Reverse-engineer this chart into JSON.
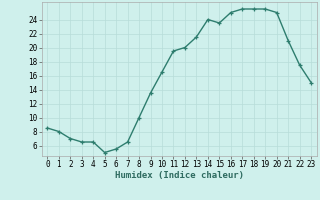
{
  "x": [
    0,
    1,
    2,
    3,
    4,
    5,
    6,
    7,
    8,
    9,
    10,
    11,
    12,
    13,
    14,
    15,
    16,
    17,
    18,
    19,
    20,
    21,
    22,
    23
  ],
  "y": [
    8.5,
    8.0,
    7.0,
    6.5,
    6.5,
    5.0,
    5.5,
    6.5,
    10.0,
    13.5,
    16.5,
    19.5,
    20.0,
    21.5,
    24.0,
    23.5,
    25.0,
    25.5,
    25.5,
    25.5,
    25.0,
    21.0,
    17.5,
    15.0
  ],
  "line_color": "#2e7d6e",
  "marker": "+",
  "marker_size": 3,
  "background_color": "#cff0ec",
  "grid_color": "#b8ddd9",
  "xlabel": "Humidex (Indice chaleur)",
  "xlim": [
    -0.5,
    23.5
  ],
  "ylim": [
    4.5,
    26.5
  ],
  "yticks": [
    6,
    8,
    10,
    12,
    14,
    16,
    18,
    20,
    22,
    24
  ],
  "xticks": [
    0,
    1,
    2,
    3,
    4,
    5,
    6,
    7,
    8,
    9,
    10,
    11,
    12,
    13,
    14,
    15,
    16,
    17,
    18,
    19,
    20,
    21,
    22,
    23
  ],
  "xlabel_fontsize": 6.5,
  "tick_fontsize": 5.5,
  "line_width": 1.0,
  "marker_edge_width": 0.9
}
